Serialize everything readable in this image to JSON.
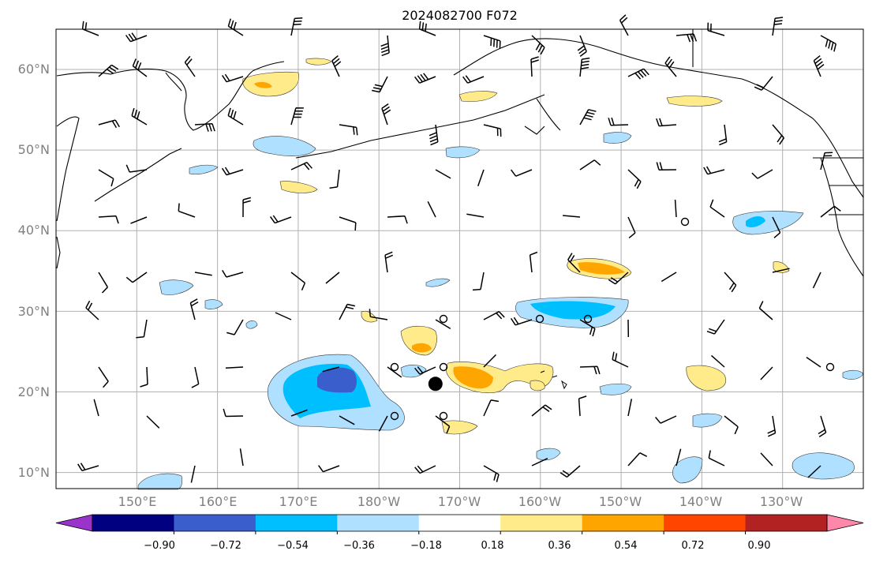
{
  "title": "2024082700 F072",
  "lat_labels": [
    "60°N",
    "50°N",
    "40°N",
    "30°N",
    "20°N",
    "10°N"
  ],
  "lon_labels": [
    "150°E",
    "160°E",
    "170°E",
    "180°W",
    "170°W",
    "160°W",
    "150°W",
    "140°W",
    "130°W"
  ],
  "colorbar": {
    "ticks": [
      "−0.90",
      "−0.72",
      "−0.54",
      "−0.36",
      "−0.18",
      "0.18",
      "0.36",
      "0.54",
      "0.72",
      "0.90"
    ],
    "colors": [
      "#9933cc",
      "#000080",
      "#3a5fcd",
      "#00bfff",
      "#b0e0ff",
      "#ffffff",
      "#ffeb8a",
      "#ffa500",
      "#ff4500",
      "#b22222",
      "#ff88aa"
    ]
  },
  "grid": {
    "lon_min": 140,
    "lon_max": 240,
    "lat_min": 8,
    "lat_max": 65,
    "lon_ticks": [
      150,
      160,
      170,
      180,
      190,
      200,
      210,
      220,
      230
    ],
    "lat_ticks": [
      60,
      50,
      40,
      30,
      20,
      10
    ]
  },
  "storm_marker": {
    "lon": 187,
    "lat": 21
  }
}
